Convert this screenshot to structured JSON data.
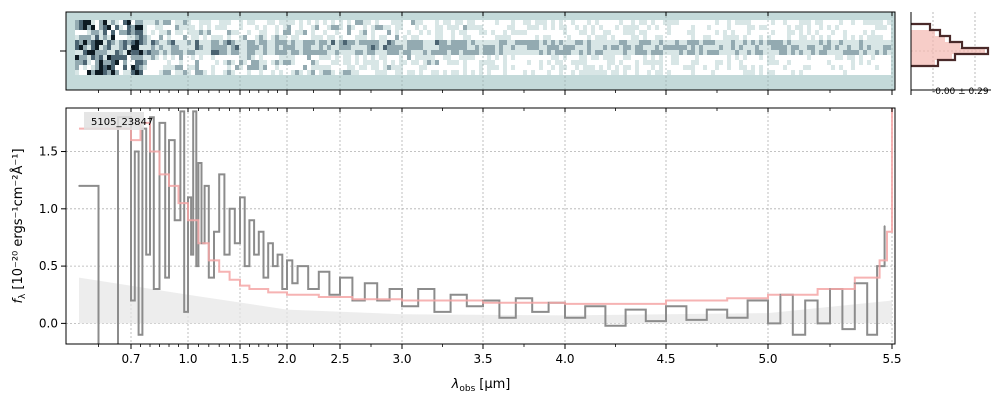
{
  "chart_data": [
    {
      "type": "line",
      "panel": "main-spectrum",
      "object_label": "5105_23847",
      "xlabel_main": "λ",
      "xlabel_sub": "obs",
      "xlabel_unit": "[μm]",
      "ylabel_main": "f",
      "ylabel_sub": "λ",
      "ylabel_rest": "[10⁻²⁰ ergs⁻¹cm⁻²Å⁻¹]",
      "x_scale": "nonlinear (prism dispersion)",
      "xlim": [
        0.6,
        5.52
      ],
      "ylim": [
        -0.18,
        1.88
      ],
      "x_ticks": [
        {
          "value": 0.7,
          "label": "0.7"
        },
        {
          "value": 1.0,
          "label": "1.0"
        },
        {
          "value": 1.5,
          "label": "1.5"
        },
        {
          "value": 2.0,
          "label": "2.0"
        },
        {
          "value": 2.5,
          "label": "2.5"
        },
        {
          "value": 3.0,
          "label": "3.0"
        },
        {
          "value": 3.5,
          "label": "3.5"
        },
        {
          "value": 4.0,
          "label": "4.0"
        },
        {
          "value": 4.5,
          "label": "4.5"
        },
        {
          "value": 5.0,
          "label": "5.0"
        },
        {
          "value": 5.5,
          "label": "5.5"
        }
      ],
      "y_ticks": [
        {
          "value": 0.0,
          "label": "0.0"
        },
        {
          "value": 0.5,
          "label": "0.5"
        },
        {
          "value": 1.0,
          "label": "1.0"
        },
        {
          "value": 1.5,
          "label": "1.5"
        }
      ],
      "grid": true,
      "series": [
        {
          "role": "flux",
          "color": "#8c8c8c",
          "points": [
            [
              0.62,
              1.2
            ],
            [
              0.65,
              -0.2
            ],
            [
              0.68,
              1.8
            ],
            [
              0.7,
              0.2
            ],
            [
              0.72,
              1.5
            ],
            [
              0.74,
              -0.1
            ],
            [
              0.76,
              1.7
            ],
            [
              0.78,
              0.6
            ],
            [
              0.8,
              1.8
            ],
            [
              0.82,
              0.3
            ],
            [
              0.85,
              1.75
            ],
            [
              0.88,
              0.4
            ],
            [
              0.9,
              1.6
            ],
            [
              0.93,
              0.9
            ],
            [
              0.96,
              1.85
            ],
            [
              0.98,
              0.1
            ],
            [
              1.0,
              1.1
            ],
            [
              1.03,
              0.6
            ],
            [
              1.05,
              1.85
            ],
            [
              1.08,
              0.5
            ],
            [
              1.1,
              1.4
            ],
            [
              1.13,
              0.7
            ],
            [
              1.16,
              1.2
            ],
            [
              1.2,
              0.4
            ],
            [
              1.25,
              0.8
            ],
            [
              1.3,
              1.3
            ],
            [
              1.35,
              0.6
            ],
            [
              1.4,
              1.0
            ],
            [
              1.45,
              0.7
            ],
            [
              1.5,
              1.1
            ],
            [
              1.55,
              0.5
            ],
            [
              1.6,
              0.9
            ],
            [
              1.65,
              0.6
            ],
            [
              1.7,
              0.8
            ],
            [
              1.75,
              0.4
            ],
            [
              1.8,
              0.7
            ],
            [
              1.85,
              0.5
            ],
            [
              1.9,
              0.6
            ],
            [
              1.95,
              0.3
            ],
            [
              2.0,
              0.55
            ],
            [
              2.05,
              0.35
            ],
            [
              2.1,
              0.5
            ],
            [
              2.2,
              0.3
            ],
            [
              2.3,
              0.45
            ],
            [
              2.4,
              0.25
            ],
            [
              2.5,
              0.4
            ],
            [
              2.6,
              0.2
            ],
            [
              2.7,
              0.35
            ],
            [
              2.8,
              0.2
            ],
            [
              2.9,
              0.3
            ],
            [
              3.0,
              0.15
            ],
            [
              3.1,
              0.3
            ],
            [
              3.2,
              0.1
            ],
            [
              3.3,
              0.25
            ],
            [
              3.4,
              0.15
            ],
            [
              3.5,
              0.2
            ],
            [
              3.6,
              0.05
            ],
            [
              3.7,
              0.22
            ],
            [
              3.8,
              0.1
            ],
            [
              3.9,
              0.18
            ],
            [
              4.0,
              0.05
            ],
            [
              4.1,
              0.15
            ],
            [
              4.2,
              -0.02
            ],
            [
              4.3,
              0.12
            ],
            [
              4.4,
              0.02
            ],
            [
              4.5,
              0.15
            ],
            [
              4.6,
              0.03
            ],
            [
              4.7,
              0.12
            ],
            [
              4.8,
              0.05
            ],
            [
              4.9,
              0.2
            ],
            [
              5.0,
              0.0
            ],
            [
              5.05,
              0.25
            ],
            [
              5.1,
              -0.1
            ],
            [
              5.15,
              0.2
            ],
            [
              5.2,
              0.0
            ],
            [
              5.25,
              0.3
            ],
            [
              5.3,
              -0.05
            ],
            [
              5.35,
              0.35
            ],
            [
              5.4,
              -0.1
            ],
            [
              5.44,
              0.5
            ],
            [
              5.47,
              0.85
            ]
          ]
        },
        {
          "role": "model",
          "color": "#f4a6a6",
          "points": [
            [
              0.62,
              1.7
            ],
            [
              0.7,
              1.6
            ],
            [
              0.75,
              1.75
            ],
            [
              0.8,
              1.5
            ],
            [
              0.85,
              1.3
            ],
            [
              0.9,
              1.2
            ],
            [
              0.95,
              1.05
            ],
            [
              1.0,
              0.9
            ],
            [
              1.1,
              0.7
            ],
            [
              1.2,
              0.55
            ],
            [
              1.3,
              0.45
            ],
            [
              1.4,
              0.38
            ],
            [
              1.5,
              0.33
            ],
            [
              1.6,
              0.3
            ],
            [
              1.8,
              0.27
            ],
            [
              2.0,
              0.25
            ],
            [
              2.3,
              0.23
            ],
            [
              2.6,
              0.21
            ],
            [
              3.0,
              0.2
            ],
            [
              3.5,
              0.18
            ],
            [
              4.0,
              0.17
            ],
            [
              4.5,
              0.2
            ],
            [
              4.8,
              0.22
            ],
            [
              5.0,
              0.25
            ],
            [
              5.2,
              0.3
            ],
            [
              5.35,
              0.4
            ],
            [
              5.45,
              0.55
            ],
            [
              5.48,
              0.8
            ],
            [
              5.5,
              1.9
            ]
          ]
        },
        {
          "role": "error",
          "color": "#e6e6e6",
          "points": [
            [
              0.62,
              0.4
            ],
            [
              1.0,
              0.25
            ],
            [
              2.0,
              0.12
            ],
            [
              3.0,
              0.08
            ],
            [
              4.0,
              0.07
            ],
            [
              5.0,
              0.09
            ],
            [
              5.5,
              0.2
            ]
          ]
        }
      ]
    },
    {
      "type": "heatmap",
      "panel": "2d-spectrum",
      "colormap": "bone_r",
      "background_color": "#c4dada"
    },
    {
      "type": "line",
      "panel": "spatial-profile",
      "annotation": "-0.00 ± 0.29",
      "series": [
        {
          "role": "profile",
          "color": "#4a2a2a"
        },
        {
          "role": "model-profile",
          "color": "#e05050"
        }
      ]
    }
  ]
}
